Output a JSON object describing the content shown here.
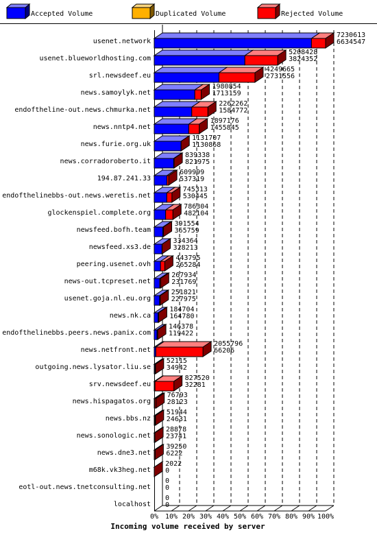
{
  "chart_data": {
    "type": "bar",
    "orientation": "horizontal",
    "stacked": true,
    "xlabel": "Incoming volume received by server",
    "x_ticks": [
      "0%",
      "10%",
      "20%",
      "30%",
      "40%",
      "50%",
      "60%",
      "70%",
      "80%",
      "90%",
      "100%"
    ],
    "xlim": [
      0,
      100
    ],
    "grid": true,
    "legend_position": "top",
    "series": [
      {
        "name": "Accepted Volume",
        "color": "#0000ff"
      },
      {
        "name": "Duplicated Volume",
        "color": "#ffb000"
      },
      {
        "name": "Rejected Volume",
        "color": "#ff0000"
      }
    ],
    "categories": [
      "usenet.network",
      "usenet.blueworldhosting.com",
      "srl.newsdeef.eu",
      "news.samoylyk.net",
      "endoftheline-out.news.chmurka.net",
      "news.nntp4.net",
      "news.furie.org.uk",
      "news.corradoroberto.it",
      "194.87.241.33",
      "endofthelinebbs-out.news.weretis.net",
      "glockenspiel.complete.org",
      "newsfeed.bofh.team",
      "newsfeed.xs3.de",
      "peering.usenet.ovh",
      "news-out.tcpreset.net",
      "usenet.goja.nl.eu.org",
      "news.nk.ca",
      "endofthelinebbs.peers.news.panix.com",
      "news.netfront.net",
      "outgoing.news.lysator.liu.se",
      "srv.newsdeef.eu",
      "news.hispagatos.org",
      "news.bbs.nz",
      "news.sonologic.net",
      "news.dne3.net",
      "m68k.vk3heg.net",
      "eotl-out.news.tnetconsulting.net",
      "localhost"
    ],
    "total_labels": [
      "7230613",
      "5208428",
      "4249665",
      "1980854",
      "2262262",
      "1897176",
      "1131707",
      "839338",
      "609999",
      "745313",
      "786304",
      "391554",
      "334364",
      "443795",
      "267934",
      "251821",
      "184704",
      "146378",
      "2055796",
      "52115",
      "827520",
      "76793",
      "51944",
      "28878",
      "39250",
      "2022",
      "0",
      "0"
    ],
    "accepted_labels": [
      "6634547",
      "3824352",
      "2731556",
      "1713159",
      "1584772",
      "1455845",
      "1130868",
      "821975",
      "537319",
      "530445",
      "482104",
      "365759",
      "328213",
      "265284",
      "231769",
      "227975",
      "164780",
      "119422",
      "66206",
      "34942",
      "32281",
      "28123",
      "24631",
      "23741",
      "6222",
      "0",
      "0",
      "0"
    ],
    "total": [
      7230613,
      5208428,
      4249665,
      1980854,
      2262262,
      1897176,
      1131707,
      839338,
      609999,
      745313,
      786304,
      391554,
      334364,
      443795,
      267934,
      251821,
      184704,
      146378,
      2055796,
      52115,
      827520,
      76793,
      51944,
      28878,
      39250,
      2022,
      0,
      0
    ],
    "accepted": [
      6634547,
      3824352,
      2731556,
      1713159,
      1584772,
      1455845,
      1130868,
      821975,
      537319,
      530445,
      482104,
      365759,
      328213,
      265284,
      231769,
      227975,
      164780,
      119422,
      66206,
      34942,
      32281,
      28123,
      24631,
      23741,
      6222,
      0,
      0,
      0
    ]
  }
}
